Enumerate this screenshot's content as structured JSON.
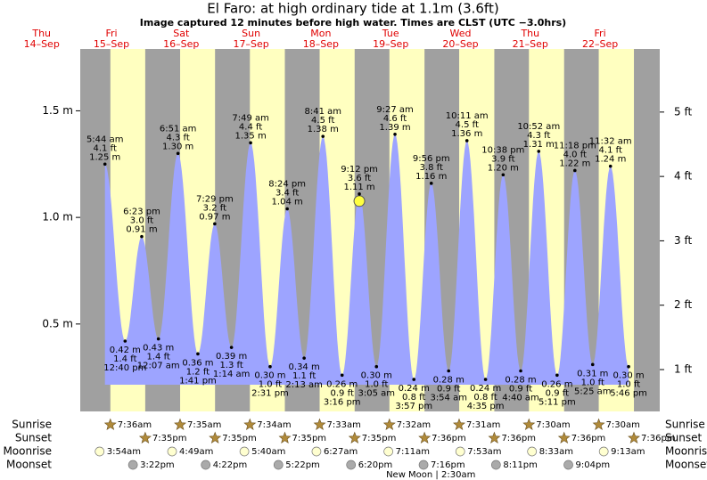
{
  "chart_data": {
    "type": "tide",
    "title": "El Faro: at high  ordinary tide at 1.1m (3.6ft)",
    "subtitle": "Image captured 12 minutes before high water. Times are CLST (UTC −3.0hrs)",
    "ylim": [
      0.09,
      1.79
    ],
    "yticks": [
      {
        "value": 0.5,
        "label": "0.5 m"
      },
      {
        "value": 1.0,
        "label": "1.0 m"
      },
      {
        "value": 1.5,
        "label": "1.5 m"
      }
    ],
    "y2lim": [
      0.35,
      5.98
    ],
    "y2ticks": [
      {
        "value": 1,
        "label": "1 ft"
      },
      {
        "value": 2,
        "label": "2 ft"
      },
      {
        "value": 3,
        "label": "3 ft"
      },
      {
        "value": 4,
        "label": "4 ft"
      },
      {
        "value": 5,
        "label": "5 ft"
      }
    ],
    "area_color": "#9da4ff",
    "day_color": "#ffffc0",
    "night_color": "#a0a0a0",
    "row_labels": [
      "Sunrise",
      "Sunset",
      "Moonrise",
      "Moonset"
    ],
    "days": [
      {
        "name": "Thu",
        "date": "14–Sep"
      },
      {
        "name": "Fri",
        "date": "15–Sep",
        "sunrise": "7:36am",
        "sunset": "7:35pm",
        "moonrise": "3:54am",
        "moonset": "3:22pm",
        "tides": [
          {
            "time": "5:44 am",
            "value": 1.25,
            "value_label": "1.25 m",
            "ft": "4.1 ft",
            "kind": "high"
          },
          {
            "time": "12:40 pm",
            "value": 0.42,
            "value_label": "0.42 m",
            "ft": "1.4 ft",
            "kind": "low"
          },
          {
            "time": "6:23 pm",
            "value": 0.91,
            "value_label": "0.91 m",
            "ft": "3.0 ft",
            "kind": "high"
          }
        ]
      },
      {
        "name": "Sat",
        "date": "16–Sep",
        "sunrise": "7:35am",
        "sunset": "7:35pm",
        "moonrise": "4:49am",
        "moonset": "4:22pm",
        "tides": [
          {
            "time": "12:07 am",
            "value": 0.43,
            "value_label": "0.43 m",
            "ft": "1.4 ft",
            "kind": "low"
          },
          {
            "time": "6:51 am",
            "value": 1.3,
            "value_label": "1.30 m",
            "ft": "4.3 ft",
            "kind": "high"
          },
          {
            "time": "1:41 pm",
            "value": 0.36,
            "value_label": "0.36 m",
            "ft": "1.2 ft",
            "kind": "low"
          },
          {
            "time": "7:29 pm",
            "value": 0.97,
            "value_label": "0.97 m",
            "ft": "3.2 ft",
            "kind": "high"
          }
        ]
      },
      {
        "name": "Sun",
        "date": "17–Sep",
        "sunrise": "7:34am",
        "sunset": "7:35pm",
        "moonrise": "5:40am",
        "moonset": "5:22pm",
        "tides": [
          {
            "time": "1:14 am",
            "value": 0.39,
            "value_label": "0.39 m",
            "ft": "1.3 ft",
            "kind": "low"
          },
          {
            "time": "7:49 am",
            "value": 1.35,
            "value_label": "1.35 m",
            "ft": "4.4 ft",
            "kind": "high"
          },
          {
            "time": "2:31 pm",
            "value": 0.3,
            "value_label": "0.30 m",
            "ft": "1.0 ft",
            "kind": "low"
          },
          {
            "time": "8:24 pm",
            "value": 1.04,
            "value_label": "1.04 m",
            "ft": "3.4 ft",
            "kind": "high"
          }
        ]
      },
      {
        "name": "Mon",
        "date": "18–Sep",
        "sunrise": "7:33am",
        "sunset": "7:35pm",
        "moonrise": "6:27am",
        "moonset": "6:20pm",
        "tides": [
          {
            "time": "2:13 am",
            "value": 0.34,
            "value_label": "0.34 m",
            "ft": "1.1 ft",
            "kind": "low"
          },
          {
            "time": "8:41 am",
            "value": 1.38,
            "value_label": "1.38 m",
            "ft": "4.5 ft",
            "kind": "high"
          },
          {
            "time": "3:16 pm",
            "value": 0.26,
            "value_label": "0.26 m",
            "ft": "0.9 ft",
            "kind": "low"
          },
          {
            "time": "9:12 pm",
            "value": 1.11,
            "value_label": "1.11 m",
            "ft": "3.6 ft",
            "kind": "high",
            "current": true
          }
        ]
      },
      {
        "name": "Tue",
        "date": "19–Sep",
        "sunrise": "7:32am",
        "sunset": "7:36pm",
        "moonrise": "7:11am",
        "moonset": "7:16pm",
        "moon_phase": "New Moon | 2:30am",
        "tides": [
          {
            "time": "3:05 am",
            "value": 0.3,
            "value_label": "0.30 m",
            "ft": "1.0 ft",
            "kind": "low"
          },
          {
            "time": "9:27 am",
            "value": 1.39,
            "value_label": "1.39 m",
            "ft": "4.6 ft",
            "kind": "high"
          },
          {
            "time": "3:57 pm",
            "value": 0.24,
            "value_label": "0.24 m",
            "ft": "0.8 ft",
            "kind": "low"
          },
          {
            "time": "9:56 pm",
            "value": 1.16,
            "value_label": "1.16 m",
            "ft": "3.8 ft",
            "kind": "high"
          }
        ]
      },
      {
        "name": "Wed",
        "date": "20–Sep",
        "sunrise": "7:31am",
        "sunset": "7:36pm",
        "moonrise": "7:53am",
        "moonset": "8:11pm",
        "tides": [
          {
            "time": "3:54 am",
            "value": 0.28,
            "value_label": "0.28 m",
            "ft": "0.9 ft",
            "kind": "low"
          },
          {
            "time": "10:11 am",
            "value": 1.36,
            "value_label": "1.36 m",
            "ft": "4.5 ft",
            "kind": "high"
          },
          {
            "time": "4:35 pm",
            "value": 0.24,
            "value_label": "0.24 m",
            "ft": "0.8 ft",
            "kind": "low"
          },
          {
            "time": "10:38 pm",
            "value": 1.2,
            "value_label": "1.20 m",
            "ft": "3.9 ft",
            "kind": "high"
          }
        ]
      },
      {
        "name": "Thu",
        "date": "21–Sep",
        "sunrise": "7:30am",
        "sunset": "7:36pm",
        "moonrise": "8:33am",
        "moonset": "9:04pm",
        "tides": [
          {
            "time": "4:40 am",
            "value": 0.28,
            "value_label": "0.28 m",
            "ft": "0.9 ft",
            "kind": "low"
          },
          {
            "time": "10:52 am",
            "value": 1.31,
            "value_label": "1.31 m",
            "ft": "4.3 ft",
            "kind": "high"
          },
          {
            "time": "5:11 pm",
            "value": 0.26,
            "value_label": "0.26 m",
            "ft": "0.9 ft",
            "kind": "low"
          },
          {
            "time": "11:18 pm",
            "value": 1.22,
            "value_label": "1.22 m",
            "ft": "4.0 ft",
            "kind": "high"
          }
        ]
      },
      {
        "name": "Fri",
        "date": "22–Sep",
        "sunrise": "7:30am",
        "sunset": "7:36pm",
        "moonrise": "9:13am",
        "tides": [
          {
            "time": "5:25 am",
            "value": 0.31,
            "value_label": "0.31 m",
            "ft": "1.0 ft",
            "kind": "low"
          },
          {
            "time": "11:32 am",
            "value": 1.24,
            "value_label": "1.24 m",
            "ft": "4.1 ft",
            "kind": "high"
          },
          {
            "time": "5:46 pm",
            "value": 0.3,
            "value_label": "0.30 m",
            "ft": "1.0 ft",
            "kind": "low"
          }
        ]
      }
    ]
  }
}
